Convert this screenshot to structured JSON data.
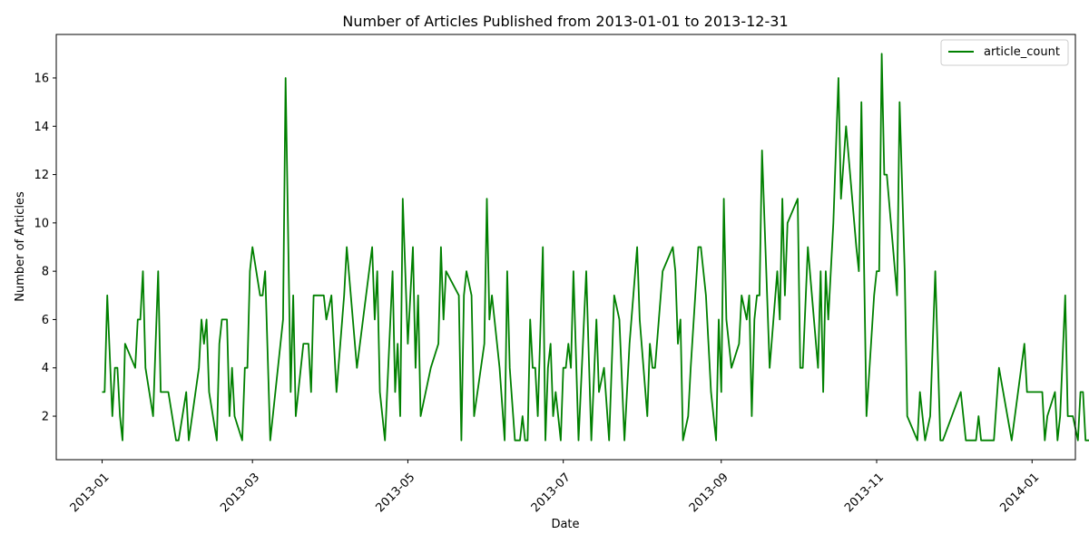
{
  "chart_data": {
    "type": "line",
    "title": "Number of Articles Published from 2013-01-01 to 2013-12-31",
    "xlabel": "Date",
    "ylabel": "Number of Articles",
    "xlim": [
      "2012-12-14",
      "2014-01-18"
    ],
    "ylim": [
      0.2,
      17.8
    ],
    "x_ticks": [
      {
        "label": "2013-01",
        "date": "2013-01-01"
      },
      {
        "label": "2013-03",
        "date": "2013-03-01"
      },
      {
        "label": "2013-05",
        "date": "2013-05-01"
      },
      {
        "label": "2013-07",
        "date": "2013-07-01"
      },
      {
        "label": "2013-09",
        "date": "2013-09-01"
      },
      {
        "label": "2013-11",
        "date": "2013-11-01"
      },
      {
        "label": "2014-01",
        "date": "2014-01-01"
      }
    ],
    "y_ticks": [
      2,
      4,
      6,
      8,
      10,
      12,
      14,
      16
    ],
    "grid": false,
    "legend_position": "top-right",
    "series": [
      {
        "name": "article_count",
        "color": "#008000",
        "points": [
          [
            "2013-01-01",
            3
          ],
          [
            "2013-01-02",
            3
          ],
          [
            "2013-01-03",
            7
          ],
          [
            "2013-01-05",
            2
          ],
          [
            "2013-01-06",
            4
          ],
          [
            "2013-01-07",
            4
          ],
          [
            "2013-01-08",
            2
          ],
          [
            "2013-01-09",
            1
          ],
          [
            "2013-01-10",
            5
          ],
          [
            "2013-01-14",
            4
          ],
          [
            "2013-01-15",
            6
          ],
          [
            "2013-01-16",
            6
          ],
          [
            "2013-01-17",
            8
          ],
          [
            "2013-01-18",
            4
          ],
          [
            "2013-01-21",
            2
          ],
          [
            "2013-01-23",
            8
          ],
          [
            "2013-01-24",
            3
          ],
          [
            "2013-01-27",
            3
          ],
          [
            "2013-01-30",
            1
          ],
          [
            "2013-01-31",
            1
          ],
          [
            "2013-02-03",
            3
          ],
          [
            "2013-02-04",
            1
          ],
          [
            "2013-02-08",
            4
          ],
          [
            "2013-02-09",
            6
          ],
          [
            "2013-02-10",
            5
          ],
          [
            "2013-02-11",
            6
          ],
          [
            "2013-02-12",
            3
          ],
          [
            "2013-02-15",
            1
          ],
          [
            "2013-02-16",
            5
          ],
          [
            "2013-02-17",
            6
          ],
          [
            "2013-02-19",
            6
          ],
          [
            "2013-02-20",
            2
          ],
          [
            "2013-02-21",
            4
          ],
          [
            "2013-02-22",
            2
          ],
          [
            "2013-02-25",
            1
          ],
          [
            "2013-02-26",
            4
          ],
          [
            "2013-02-27",
            4
          ],
          [
            "2013-02-28",
            8
          ],
          [
            "2013-03-01",
            9
          ],
          [
            "2013-03-04",
            7
          ],
          [
            "2013-03-05",
            7
          ],
          [
            "2013-03-06",
            8
          ],
          [
            "2013-03-08",
            1
          ],
          [
            "2013-03-13",
            6
          ],
          [
            "2013-03-14",
            16
          ],
          [
            "2013-03-16",
            3
          ],
          [
            "2013-03-17",
            7
          ],
          [
            "2013-03-18",
            2
          ],
          [
            "2013-03-21",
            5
          ],
          [
            "2013-03-23",
            5
          ],
          [
            "2013-03-24",
            3
          ],
          [
            "2013-03-25",
            7
          ],
          [
            "2013-03-26",
            7
          ],
          [
            "2013-03-29",
            7
          ],
          [
            "2013-03-30",
            6
          ],
          [
            "2013-04-01",
            7
          ],
          [
            "2013-04-03",
            3
          ],
          [
            "2013-04-06",
            7
          ],
          [
            "2013-04-07",
            9
          ],
          [
            "2013-04-11",
            4
          ],
          [
            "2013-04-17",
            9
          ],
          [
            "2013-04-18",
            6
          ],
          [
            "2013-04-19",
            8
          ],
          [
            "2013-04-20",
            3
          ],
          [
            "2013-04-22",
            1
          ],
          [
            "2013-04-25",
            8
          ],
          [
            "2013-04-26",
            3
          ],
          [
            "2013-04-27",
            5
          ],
          [
            "2013-04-28",
            2
          ],
          [
            "2013-04-29",
            11
          ],
          [
            "2013-05-01",
            5
          ],
          [
            "2013-05-03",
            9
          ],
          [
            "2013-05-04",
            4
          ],
          [
            "2013-05-05",
            7
          ],
          [
            "2013-05-06",
            2
          ],
          [
            "2013-05-10",
            4
          ],
          [
            "2013-05-13",
            5
          ],
          [
            "2013-05-14",
            9
          ],
          [
            "2013-05-15",
            6
          ],
          [
            "2013-05-16",
            8
          ],
          [
            "2013-05-21",
            7
          ],
          [
            "2013-05-22",
            1
          ],
          [
            "2013-05-23",
            7
          ],
          [
            "2013-05-24",
            8
          ],
          [
            "2013-05-26",
            7
          ],
          [
            "2013-05-27",
            2
          ],
          [
            "2013-05-31",
            5
          ],
          [
            "2013-06-01",
            11
          ],
          [
            "2013-06-02",
            6
          ],
          [
            "2013-06-03",
            7
          ],
          [
            "2013-06-06",
            4
          ],
          [
            "2013-06-08",
            1
          ],
          [
            "2013-06-09",
            8
          ],
          [
            "2013-06-10",
            4
          ],
          [
            "2013-06-12",
            1
          ],
          [
            "2013-06-14",
            1
          ],
          [
            "2013-06-15",
            2
          ],
          [
            "2013-06-16",
            1
          ],
          [
            "2013-06-17",
            1
          ],
          [
            "2013-06-18",
            6
          ],
          [
            "2013-06-19",
            4
          ],
          [
            "2013-06-20",
            4
          ],
          [
            "2013-06-21",
            2
          ],
          [
            "2013-06-23",
            9
          ],
          [
            "2013-06-24",
            1
          ],
          [
            "2013-06-25",
            4
          ],
          [
            "2013-06-26",
            5
          ],
          [
            "2013-06-27",
            2
          ],
          [
            "2013-06-28",
            3
          ],
          [
            "2013-06-30",
            1
          ],
          [
            "2013-07-01",
            4
          ],
          [
            "2013-07-02",
            4
          ],
          [
            "2013-07-03",
            5
          ],
          [
            "2013-07-04",
            4
          ],
          [
            "2013-07-05",
            8
          ],
          [
            "2013-07-07",
            1
          ],
          [
            "2013-07-10",
            8
          ],
          [
            "2013-07-12",
            1
          ],
          [
            "2013-07-14",
            6
          ],
          [
            "2013-07-15",
            3
          ],
          [
            "2013-07-17",
            4
          ],
          [
            "2013-07-19",
            1
          ],
          [
            "2013-07-21",
            7
          ],
          [
            "2013-07-23",
            6
          ],
          [
            "2013-07-25",
            1
          ],
          [
            "2013-07-27",
            5
          ],
          [
            "2013-07-30",
            9
          ],
          [
            "2013-07-31",
            6
          ],
          [
            "2013-08-03",
            2
          ],
          [
            "2013-08-04",
            5
          ],
          [
            "2013-08-05",
            4
          ],
          [
            "2013-08-06",
            4
          ],
          [
            "2013-08-09",
            8
          ],
          [
            "2013-08-13",
            9
          ],
          [
            "2013-08-14",
            8
          ],
          [
            "2013-08-15",
            5
          ],
          [
            "2013-08-16",
            6
          ],
          [
            "2013-08-17",
            1
          ],
          [
            "2013-08-19",
            2
          ],
          [
            "2013-08-20",
            4
          ],
          [
            "2013-08-23",
            9
          ],
          [
            "2013-08-24",
            9
          ],
          [
            "2013-08-26",
            7
          ],
          [
            "2013-08-28",
            3
          ],
          [
            "2013-08-30",
            1
          ],
          [
            "2013-08-31",
            6
          ],
          [
            "2013-09-01",
            3
          ],
          [
            "2013-09-02",
            11
          ],
          [
            "2013-09-03",
            6
          ],
          [
            "2013-09-05",
            4
          ],
          [
            "2013-09-08",
            5
          ],
          [
            "2013-09-09",
            7
          ],
          [
            "2013-09-11",
            6
          ],
          [
            "2013-09-12",
            7
          ],
          [
            "2013-09-13",
            2
          ],
          [
            "2013-09-14",
            6
          ],
          [
            "2013-09-15",
            7
          ],
          [
            "2013-09-16",
            7
          ],
          [
            "2013-09-17",
            13
          ],
          [
            "2013-09-20",
            4
          ],
          [
            "2013-09-23",
            8
          ],
          [
            "2013-09-24",
            6
          ],
          [
            "2013-09-25",
            11
          ],
          [
            "2013-09-26",
            7
          ],
          [
            "2013-09-27",
            10
          ],
          [
            "2013-10-01",
            11
          ],
          [
            "2013-10-02",
            4
          ],
          [
            "2013-10-03",
            4
          ],
          [
            "2013-10-05",
            9
          ],
          [
            "2013-10-09",
            4
          ],
          [
            "2013-10-10",
            8
          ],
          [
            "2013-10-11",
            3
          ],
          [
            "2013-10-12",
            8
          ],
          [
            "2013-10-13",
            6
          ],
          [
            "2013-10-15",
            10
          ],
          [
            "2013-10-17",
            16
          ],
          [
            "2013-10-18",
            11
          ],
          [
            "2013-10-20",
            14
          ],
          [
            "2013-10-24",
            9
          ],
          [
            "2013-10-25",
            8
          ],
          [
            "2013-10-26",
            15
          ],
          [
            "2013-10-28",
            2
          ],
          [
            "2013-10-31",
            7
          ],
          [
            "2013-11-01",
            8
          ],
          [
            "2013-11-02",
            8
          ],
          [
            "2013-11-03",
            17
          ],
          [
            "2013-11-04",
            12
          ],
          [
            "2013-11-05",
            12
          ],
          [
            "2013-11-09",
            7
          ],
          [
            "2013-11-10",
            15
          ],
          [
            "2013-11-12",
            8
          ],
          [
            "2013-11-13",
            2
          ],
          [
            "2013-11-17",
            1
          ],
          [
            "2013-11-18",
            3
          ],
          [
            "2013-11-20",
            1
          ],
          [
            "2013-11-22",
            2
          ],
          [
            "2013-11-24",
            8
          ],
          [
            "2013-11-26",
            1
          ],
          [
            "2013-11-27",
            1
          ],
          [
            "2013-12-04",
            3
          ],
          [
            "2013-12-06",
            1
          ],
          [
            "2013-12-09",
            1
          ],
          [
            "2013-12-10",
            1
          ],
          [
            "2013-12-11",
            2
          ],
          [
            "2013-12-12",
            1
          ],
          [
            "2013-12-17",
            1
          ],
          [
            "2013-12-19",
            4
          ],
          [
            "2013-12-24",
            1
          ],
          [
            "2013-12-29",
            5
          ],
          [
            "2013-12-30",
            3
          ],
          [
            "2014-01-04",
            3
          ],
          [
            "2014-01-05",
            3
          ],
          [
            "2014-01-06",
            1
          ],
          [
            "2014-01-07",
            2
          ],
          [
            "2014-01-10",
            3
          ],
          [
            "2014-01-11",
            1
          ],
          [
            "2014-01-12",
            2
          ],
          [
            "2014-01-14",
            7
          ],
          [
            "2014-01-15",
            2
          ],
          [
            "2014-01-17",
            2
          ],
          [
            "2014-01-19",
            1
          ],
          [
            "2014-01-20",
            3
          ],
          [
            "2014-01-21",
            3
          ],
          [
            "2014-01-22",
            1
          ],
          [
            "2014-01-24",
            1
          ],
          [
            "2014-01-25",
            4
          ],
          [
            "2014-01-26",
            1
          ],
          [
            "2014-01-28",
            1
          ],
          [
            "2014-01-29",
            3
          ],
          [
            "2014-01-30",
            3
          ],
          [
            "2014-01-31",
            3
          ]
        ]
      }
    ]
  }
}
